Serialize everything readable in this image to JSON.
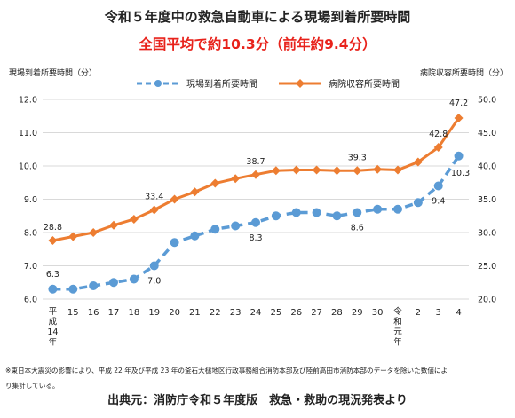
{
  "header": {
    "title": "令和５年度中の救急自動車による現場到着所要時間",
    "subtitle": "全国平均で約10.3分（前年約9.4分）"
  },
  "footer": {
    "note_line1": "※東日本大震災の影響により、平成 22 年及び平成 23 年の釜石大槌地区行政事務組合消防本部及び陸前高田市消防本部のデータを除いた数値によ",
    "note_line2": "り集計している。",
    "source": "出典元：消防庁令和５年度版　救急・救助の現況発表より"
  },
  "chart_data": {
    "type": "line",
    "categories": [
      "平成14年",
      "15",
      "16",
      "17",
      "18",
      "19",
      "20",
      "21",
      "22",
      "23",
      "24",
      "25",
      "26",
      "27",
      "28",
      "29",
      "30",
      "令和元年",
      "2",
      "3",
      "4"
    ],
    "left_axis": {
      "label": "現場到着所要時間（分）",
      "ylim": [
        6.0,
        12.0
      ],
      "ticks": [
        "6.0",
        "7.0",
        "8.0",
        "9.0",
        "10.0",
        "11.0",
        "12.0"
      ]
    },
    "right_axis": {
      "label": "病院収容所要時間（分）",
      "ylim": [
        20.0,
        50.0
      ],
      "ticks": [
        "20.0",
        "25.0",
        "30.0",
        "35.0",
        "40.0",
        "45.0",
        "50.0"
      ]
    },
    "grid": true,
    "legend_position": "top",
    "series": [
      {
        "name": "現場到着所要時間",
        "axis": "left",
        "color": "#5b9bd5",
        "style": "dashed-circle",
        "values": [
          6.3,
          6.3,
          6.4,
          6.5,
          6.6,
          7.0,
          7.7,
          7.9,
          8.1,
          8.2,
          8.3,
          8.5,
          8.6,
          8.6,
          8.5,
          8.6,
          8.7,
          8.7,
          8.9,
          9.4,
          10.3
        ],
        "data_labels": [
          {
            "index": 0,
            "text": "6.3"
          },
          {
            "index": 5,
            "text": "7.0"
          },
          {
            "index": 10,
            "text": "8.3"
          },
          {
            "index": 15,
            "text": "8.6"
          },
          {
            "index": 19,
            "text": "9.4"
          },
          {
            "index": 20,
            "text": "10.3"
          }
        ]
      },
      {
        "name": "病院収容所要時間",
        "axis": "right",
        "color": "#ed7d31",
        "style": "solid-diamond",
        "values": [
          28.8,
          29.4,
          30.0,
          31.1,
          32.0,
          33.4,
          35.0,
          36.1,
          37.4,
          38.1,
          38.7,
          39.3,
          39.4,
          39.4,
          39.3,
          39.3,
          39.5,
          39.4,
          40.6,
          42.8,
          47.2
        ],
        "data_labels": [
          {
            "index": 0,
            "text": "28.8"
          },
          {
            "index": 5,
            "text": "33.4"
          },
          {
            "index": 10,
            "text": "38.7"
          },
          {
            "index": 15,
            "text": "39.3"
          },
          {
            "index": 19,
            "text": "42.8"
          },
          {
            "index": 20,
            "text": "47.2"
          }
        ]
      }
    ]
  }
}
